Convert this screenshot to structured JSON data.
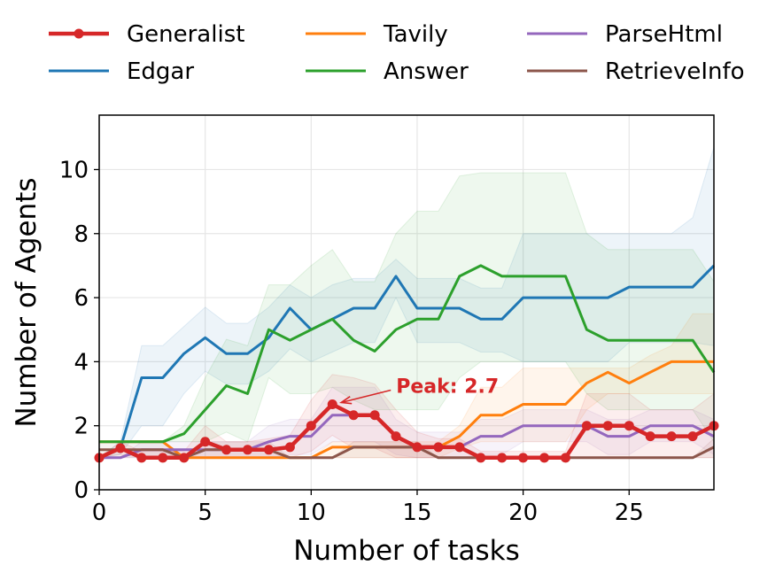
{
  "chart_data": {
    "type": "line",
    "title": "",
    "xlabel": "Number of tasks",
    "ylabel": "Number of Agents",
    "xlim": [
      0,
      29
    ],
    "ylim": [
      0,
      11.7
    ],
    "xticks": [
      0,
      5,
      10,
      15,
      20,
      25
    ],
    "yticks": [
      0,
      2,
      4,
      6,
      8,
      10
    ],
    "grid": true,
    "legend_position": "top",
    "x": [
      0,
      1,
      2,
      3,
      4,
      5,
      6,
      7,
      8,
      9,
      10,
      11,
      12,
      13,
      14,
      15,
      16,
      17,
      18,
      19,
      20,
      21,
      22,
      23,
      24,
      25,
      26,
      27,
      28,
      29
    ],
    "series": [
      {
        "name": "Generalist",
        "color": "#d62728",
        "markers": true,
        "values": [
          1.0,
          1.3,
          1.0,
          1.0,
          1.0,
          1.5,
          1.25,
          1.25,
          1.25,
          1.33,
          2.0,
          2.67,
          2.33,
          2.33,
          1.67,
          1.33,
          1.33,
          1.33,
          1.0,
          1.0,
          1.0,
          1.0,
          1.0,
          2.0,
          2.0,
          2.0,
          1.67,
          1.67,
          1.67,
          2.0
        ],
        "band_upper": [
          1.0,
          1.5,
          1.2,
          1.2,
          1.2,
          2.0,
          1.5,
          1.5,
          1.6,
          1.7,
          2.8,
          3.6,
          3.5,
          3.3,
          2.5,
          1.8,
          1.6,
          1.6,
          1.2,
          1.2,
          1.2,
          1.2,
          1.2,
          3.0,
          3.0,
          3.0,
          2.5,
          2.5,
          2.5,
          3.0
        ],
        "band_lower": [
          1.0,
          1.1,
          1.0,
          1.0,
          1.0,
          1.0,
          1.0,
          1.0,
          1.0,
          1.0,
          1.2,
          1.7,
          1.3,
          1.3,
          1.0,
          1.0,
          1.0,
          1.0,
          1.0,
          1.0,
          1.0,
          1.0,
          1.0,
          1.0,
          1.0,
          1.0,
          1.0,
          1.0,
          1.0,
          1.0
        ]
      },
      {
        "name": "Edgar",
        "color": "#1f77b4",
        "markers": false,
        "values": [
          1.0,
          1.3,
          3.5,
          3.5,
          4.25,
          4.75,
          4.25,
          4.25,
          4.75,
          5.67,
          5.0,
          5.33,
          5.67,
          5.67,
          6.67,
          5.67,
          5.67,
          5.67,
          5.33,
          5.33,
          6.0,
          6.0,
          6.0,
          6.0,
          6.0,
          6.33,
          6.33,
          6.33,
          6.33,
          7.0
        ],
        "band_upper": [
          1.0,
          1.5,
          4.5,
          4.5,
          5.1,
          5.7,
          5.2,
          5.2,
          5.7,
          6.4,
          6.0,
          6.4,
          6.6,
          6.6,
          7.2,
          6.6,
          6.6,
          6.6,
          6.3,
          6.3,
          8.0,
          8.0,
          8.0,
          8.0,
          8.0,
          8.0,
          8.0,
          8.0,
          8.5,
          10.7
        ],
        "band_lower": [
          1.0,
          1.1,
          2.0,
          2.0,
          3.0,
          3.7,
          3.3,
          3.3,
          3.7,
          4.4,
          4.0,
          4.3,
          4.6,
          4.6,
          6.0,
          4.6,
          4.6,
          4.6,
          4.3,
          4.3,
          4.0,
          4.0,
          4.0,
          4.0,
          4.0,
          4.6,
          4.6,
          4.6,
          4.6,
          4.5
        ]
      },
      {
        "name": "Tavily",
        "color": "#ff7f0e",
        "markers": false,
        "values": [
          1.5,
          1.5,
          1.5,
          1.5,
          1.0,
          1.0,
          1.0,
          1.0,
          1.0,
          1.0,
          1.0,
          1.33,
          1.33,
          1.33,
          1.33,
          1.33,
          1.33,
          1.67,
          2.33,
          2.33,
          2.67,
          2.67,
          2.67,
          3.33,
          3.67,
          3.33,
          3.67,
          4.0,
          4.0,
          4.0
        ],
        "band_upper": [
          1.5,
          1.5,
          1.5,
          1.5,
          1.0,
          1.0,
          1.0,
          1.0,
          1.0,
          1.0,
          1.0,
          1.5,
          1.5,
          1.5,
          1.5,
          1.5,
          1.5,
          2.0,
          3.2,
          3.2,
          3.8,
          3.8,
          3.8,
          3.8,
          3.8,
          3.8,
          4.2,
          4.5,
          5.5,
          5.5
        ],
        "band_lower": [
          1.5,
          1.5,
          1.5,
          1.5,
          1.0,
          1.0,
          1.0,
          1.0,
          1.0,
          1.0,
          1.0,
          1.0,
          1.0,
          1.0,
          1.0,
          1.0,
          1.0,
          1.3,
          1.5,
          1.5,
          1.5,
          1.5,
          1.5,
          2.5,
          3.0,
          3.0,
          3.0,
          3.0,
          3.0,
          3.0
        ]
      },
      {
        "name": "Answer",
        "color": "#2ca02c",
        "markers": false,
        "values": [
          1.5,
          1.5,
          1.5,
          1.5,
          1.75,
          2.5,
          3.25,
          3.0,
          5.0,
          4.67,
          5.0,
          5.33,
          4.67,
          4.33,
          5.0,
          5.33,
          5.33,
          6.67,
          7.0,
          6.67,
          6.67,
          6.67,
          6.67,
          5.0,
          4.67,
          4.67,
          4.67,
          4.67,
          4.67,
          3.67
        ],
        "band_upper": [
          1.5,
          1.5,
          1.5,
          1.5,
          2.0,
          3.5,
          4.7,
          4.5,
          6.4,
          6.4,
          7.0,
          7.5,
          6.5,
          6.5,
          8.0,
          8.7,
          8.7,
          9.8,
          9.9,
          9.9,
          9.9,
          9.9,
          9.9,
          8.0,
          7.5,
          7.5,
          7.5,
          7.5,
          7.5,
          6.5
        ],
        "band_lower": [
          1.5,
          1.5,
          1.5,
          1.5,
          1.5,
          1.5,
          1.8,
          1.5,
          3.5,
          3.0,
          3.0,
          3.2,
          2.8,
          2.5,
          2.5,
          2.5,
          2.5,
          3.5,
          4.0,
          4.0,
          4.0,
          4.0,
          4.0,
          3.0,
          2.5,
          2.5,
          2.5,
          2.5,
          2.5,
          1.5
        ]
      },
      {
        "name": "ParseHtml",
        "color": "#9467bd",
        "markers": false,
        "values": [
          1.0,
          1.0,
          1.25,
          1.25,
          1.25,
          1.25,
          1.25,
          1.25,
          1.5,
          1.67,
          1.67,
          2.33,
          2.33,
          2.33,
          1.67,
          1.33,
          1.33,
          1.33,
          1.67,
          1.67,
          2.0,
          2.0,
          2.0,
          2.0,
          1.67,
          1.67,
          2.0,
          2.0,
          2.0,
          1.67
        ],
        "band_upper": [
          1.0,
          1.0,
          1.5,
          1.5,
          1.5,
          1.5,
          1.5,
          1.5,
          2.0,
          2.2,
          2.2,
          3.2,
          3.2,
          3.2,
          2.2,
          1.8,
          1.8,
          1.8,
          2.2,
          2.2,
          2.5,
          2.5,
          2.5,
          2.5,
          2.2,
          2.2,
          2.5,
          2.5,
          2.5,
          2.2
        ],
        "band_lower": [
          1.0,
          1.0,
          1.0,
          1.0,
          1.0,
          1.0,
          1.0,
          1.0,
          1.0,
          1.1,
          1.1,
          1.5,
          1.5,
          1.5,
          1.1,
          1.0,
          1.0,
          1.0,
          1.1,
          1.1,
          1.5,
          1.5,
          1.5,
          1.5,
          1.1,
          1.1,
          1.5,
          1.5,
          1.5,
          1.1
        ]
      },
      {
        "name": "RetrieveInfo",
        "color": "#8c564b",
        "markers": false,
        "values": [
          1.25,
          1.25,
          1.25,
          1.25,
          1.0,
          1.25,
          1.25,
          1.25,
          1.25,
          1.0,
          1.0,
          1.0,
          1.33,
          1.33,
          1.33,
          1.33,
          1.0,
          1.0,
          1.0,
          1.0,
          1.0,
          1.0,
          1.0,
          1.0,
          1.0,
          1.0,
          1.0,
          1.0,
          1.0,
          1.33
        ],
        "band_upper": [
          1.5,
          1.5,
          1.5,
          1.5,
          1.0,
          1.5,
          1.5,
          1.5,
          1.5,
          1.0,
          1.0,
          1.0,
          1.5,
          1.5,
          1.5,
          1.5,
          1.0,
          1.0,
          1.0,
          1.0,
          1.0,
          1.0,
          1.0,
          1.0,
          1.0,
          1.0,
          1.0,
          1.0,
          1.0,
          1.6
        ],
        "band_lower": [
          1.0,
          1.0,
          1.0,
          1.0,
          1.0,
          1.0,
          1.0,
          1.0,
          1.0,
          1.0,
          1.0,
          1.0,
          1.0,
          1.0,
          1.0,
          1.0,
          1.0,
          1.0,
          1.0,
          1.0,
          1.0,
          1.0,
          1.0,
          1.0,
          1.0,
          1.0,
          1.0,
          1.0,
          1.0,
          1.0
        ]
      }
    ],
    "annotations": [
      {
        "text": "Peak: 2.7",
        "series": "Generalist",
        "x": 11,
        "y": 2.67,
        "color": "#d62728"
      }
    ]
  }
}
